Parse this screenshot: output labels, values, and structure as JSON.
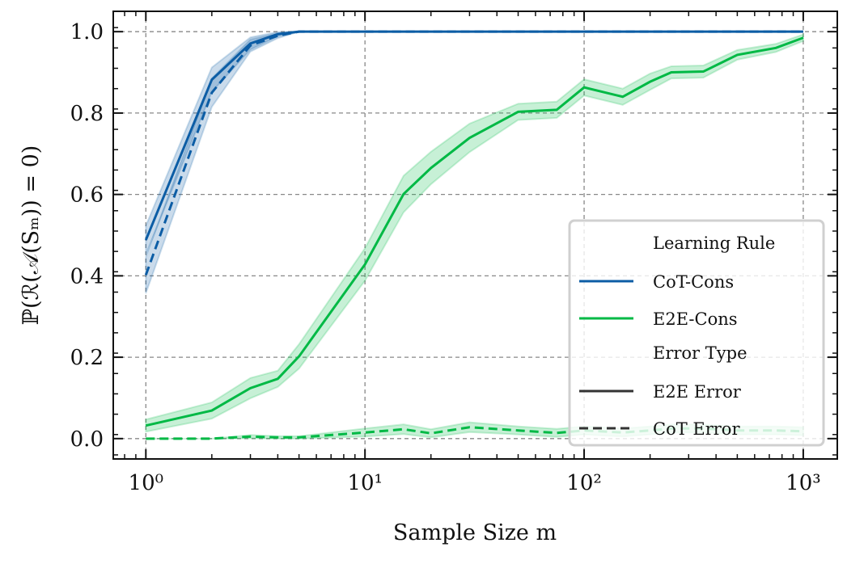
{
  "chart_data": {
    "type": "line",
    "xlabel": "Sample Size m",
    "ylabel": "ℙ(ℛ(𝒜(Sₘ)) = 0)",
    "xscale": "log",
    "xlim": [
      0.71,
      1430
    ],
    "ylim": [
      -0.05,
      1.05
    ],
    "xticks": [
      1,
      10,
      100,
      1000
    ],
    "xtick_labels": [
      "10⁰",
      "10¹",
      "10²",
      "10³"
    ],
    "yticks": [
      0.0,
      0.2,
      0.4,
      0.6,
      0.8,
      1.0
    ],
    "ytick_labels": [
      "0.0",
      "0.2",
      "0.4",
      "0.6",
      "0.8",
      "1.0"
    ],
    "grid": true,
    "legend_position": "bottom-right",
    "colors": {
      "CoT-Cons": "#0C5DA5",
      "E2E-Cons": "#00B945"
    },
    "legend": {
      "title_rule": "Learning Rule",
      "rule_entries": [
        "CoT-Cons",
        "E2E-Cons"
      ],
      "title_type": "Error Type",
      "type_entries": [
        "E2E Error",
        "CoT Error"
      ]
    },
    "series": [
      {
        "rule": "CoT-Cons",
        "error": "E2E Error",
        "style": "solid",
        "x": [
          1,
          2,
          3,
          4,
          5,
          10,
          1000
        ],
        "y": [
          0.488,
          0.882,
          0.971,
          0.994,
          1.0,
          1.0,
          1.0
        ],
        "band": [
          0.035,
          0.03,
          0.015,
          0.005,
          0.0,
          0.0,
          0.0
        ]
      },
      {
        "rule": "CoT-Cons",
        "error": "CoT Error",
        "style": "dashed",
        "x": [
          1,
          2,
          3,
          4,
          5,
          10,
          1000
        ],
        "y": [
          0.402,
          0.85,
          0.966,
          0.99,
          1.0,
          1.0,
          1.0
        ],
        "band": [
          0.045,
          0.035,
          0.015,
          0.006,
          0.0,
          0.0,
          0.0
        ]
      },
      {
        "rule": "E2E-Cons",
        "error": "E2E Error",
        "style": "solid",
        "x": [
          1,
          2,
          3,
          4,
          5,
          10,
          15,
          20,
          30,
          50,
          75,
          100,
          150,
          200,
          250,
          350,
          500,
          750,
          1000
        ],
        "y": [
          0.032,
          0.069,
          0.124,
          0.147,
          0.202,
          0.428,
          0.601,
          0.665,
          0.739,
          0.803,
          0.808,
          0.863,
          0.84,
          0.877,
          0.9,
          0.902,
          0.943,
          0.96,
          0.985
        ],
        "band": [
          0.015,
          0.02,
          0.025,
          0.02,
          0.03,
          0.04,
          0.045,
          0.04,
          0.035,
          0.02,
          0.02,
          0.02,
          0.02,
          0.02,
          0.015,
          0.015,
          0.012,
          0.01,
          0.008
        ]
      },
      {
        "rule": "E2E-Cons",
        "error": "CoT Error",
        "style": "dashed",
        "x": [
          1,
          2,
          3,
          4,
          5,
          10,
          15,
          20,
          30,
          50,
          75,
          100,
          150,
          200,
          250,
          350,
          500,
          750,
          1000
        ],
        "y": [
          0.0,
          0.0,
          0.005,
          0.003,
          0.003,
          0.015,
          0.023,
          0.013,
          0.028,
          0.02,
          0.014,
          0.02,
          0.015,
          0.02,
          0.025,
          0.025,
          0.02,
          0.02,
          0.018
        ],
        "band": [
          0.0,
          0.0,
          0.004,
          0.003,
          0.003,
          0.01,
          0.012,
          0.01,
          0.012,
          0.01,
          0.01,
          0.01,
          0.01,
          0.01,
          0.01,
          0.01,
          0.01,
          0.01,
          0.01
        ]
      }
    ]
  }
}
